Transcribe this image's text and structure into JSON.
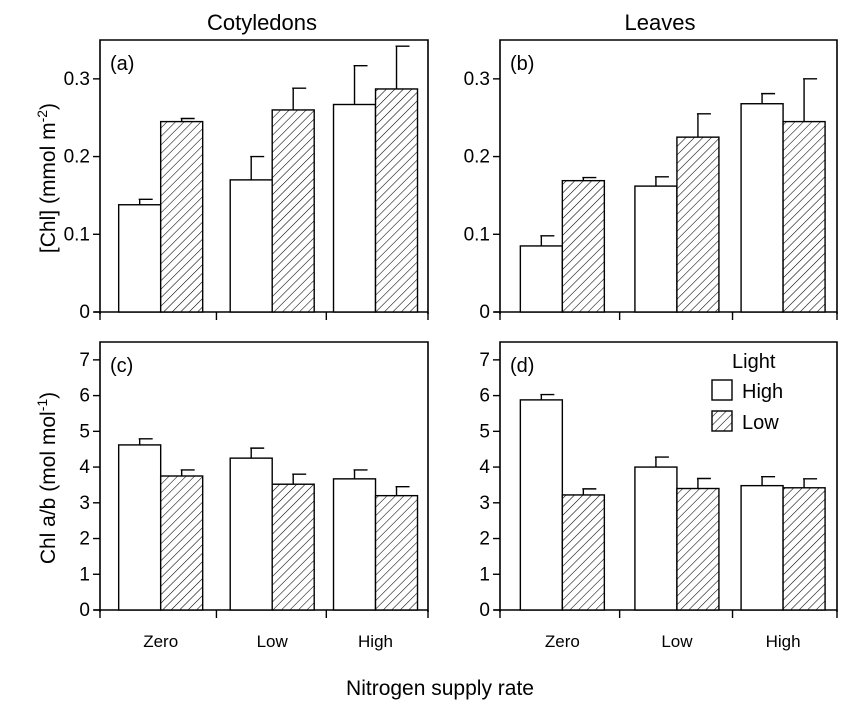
{
  "chart_data": [
    {
      "panel": "(a)",
      "column_title": "Cotyledons",
      "type": "bar",
      "categories": [
        "Zero",
        "Low",
        "High"
      ],
      "ylabel": "[Chl] (mmol m-2)",
      "ylim": [
        0,
        0.35
      ],
      "yticks": [
        "0",
        "0.1",
        "0.2",
        "0.3"
      ],
      "series": [
        {
          "name": "High",
          "values": [
            0.138,
            0.17,
            0.267
          ],
          "errors": [
            0.007,
            0.03,
            0.05
          ]
        },
        {
          "name": "Low",
          "values": [
            0.245,
            0.26,
            0.287
          ],
          "errors": [
            0.004,
            0.028,
            0.055
          ]
        }
      ]
    },
    {
      "panel": "(b)",
      "column_title": "Leaves",
      "type": "bar",
      "categories": [
        "Zero",
        "Low",
        "High"
      ],
      "ylim": [
        0,
        0.35
      ],
      "yticks": [
        "0",
        "0.1",
        "0.2",
        "0.3"
      ],
      "series": [
        {
          "name": "High",
          "values": [
            0.085,
            0.162,
            0.268
          ],
          "errors": [
            0.013,
            0.012,
            0.013
          ]
        },
        {
          "name": "Low",
          "values": [
            0.169,
            0.225,
            0.245
          ],
          "errors": [
            0.004,
            0.03,
            0.055
          ]
        }
      ]
    },
    {
      "panel": "(c)",
      "type": "bar",
      "categories": [
        "Zero",
        "Low",
        "High"
      ],
      "ylabel": "Chl a/b (mol mol-1)",
      "ylim": [
        0,
        7.5
      ],
      "yticks": [
        "0",
        "1",
        "2",
        "3",
        "4",
        "5",
        "6",
        "7"
      ],
      "series": [
        {
          "name": "High",
          "values": [
            4.62,
            4.25,
            3.67
          ],
          "errors": [
            0.17,
            0.28,
            0.25
          ]
        },
        {
          "name": "Low",
          "values": [
            3.75,
            3.52,
            3.2
          ],
          "errors": [
            0.17,
            0.28,
            0.25
          ]
        }
      ]
    },
    {
      "panel": "(d)",
      "type": "bar",
      "categories": [
        "Zero",
        "Low",
        "High"
      ],
      "ylim": [
        0,
        7.5
      ],
      "yticks": [
        "0",
        "1",
        "2",
        "3",
        "4",
        "5",
        "6",
        "7"
      ],
      "series": [
        {
          "name": "High",
          "values": [
            5.88,
            4.0,
            3.48
          ],
          "errors": [
            0.15,
            0.28,
            0.25
          ]
        },
        {
          "name": "Low",
          "values": [
            3.22,
            3.4,
            3.42
          ],
          "errors": [
            0.17,
            0.28,
            0.25
          ]
        }
      ]
    }
  ],
  "legend": {
    "title": "Light",
    "entries": [
      "High",
      "Low"
    ]
  },
  "xlabel": "Nitrogen supply rate",
  "ylabel_top": {
    "main": "[Chl] (mmol m",
    "sup": "-2",
    "close": ")"
  },
  "ylabel_bottom": {
    "main": "Chl a/b (mol mol",
    "sup": "-1",
    "close": ")"
  },
  "colors": {
    "high_fill": "#ffffff",
    "low_fill": "#ffffff",
    "hatch": "#000000"
  }
}
